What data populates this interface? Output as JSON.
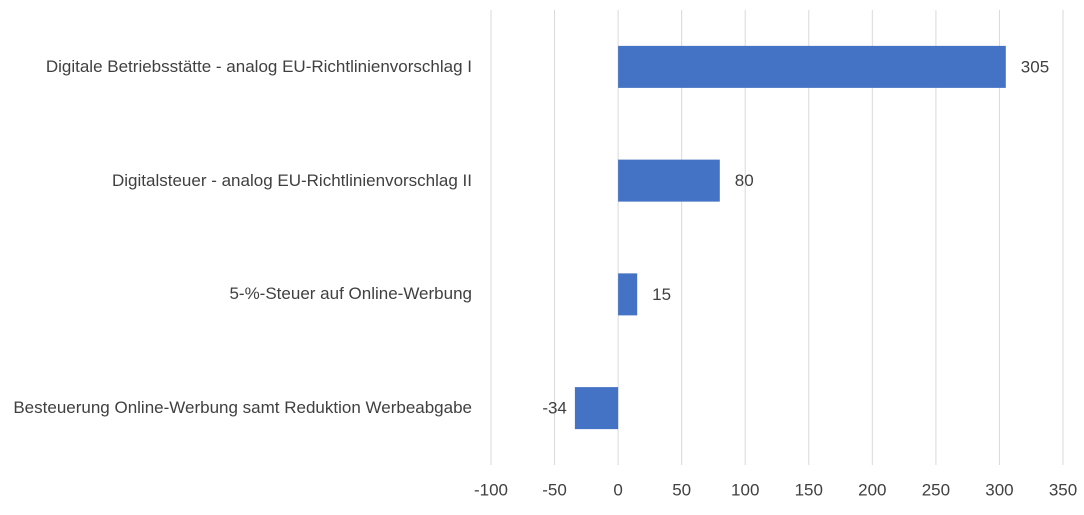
{
  "chart_data": {
    "type": "bar",
    "orientation": "horizontal",
    "categories": [
      "Digitale Betriebsstätte - analog EU-Richtlinienvorschlag I",
      "Digitalsteuer - analog EU-Richtlinienvorschlag II",
      "5-%-Steuer auf Online-Werbung",
      "Besteuerung Online-Werbung samt Reduktion Werbeabgabe"
    ],
    "values": [
      305,
      80,
      15,
      -34
    ],
    "color": "#4472c4",
    "xlim": [
      -100,
      350
    ],
    "xticks": [
      -100,
      -50,
      0,
      50,
      100,
      150,
      200,
      250,
      300,
      350
    ],
    "grid": true
  }
}
